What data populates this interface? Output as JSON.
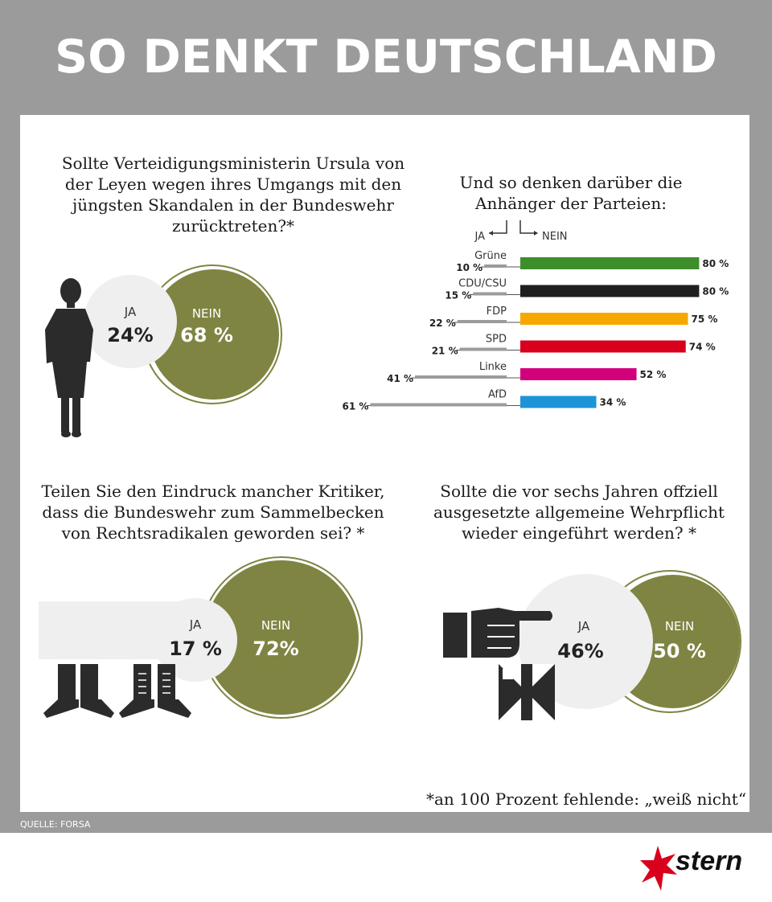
{
  "title": "SO DENKT DEUTSCHLAND",
  "source": "QUELLE: FORSA",
  "footnote": "*an 100 Prozent fehlende: „weiß nicht“",
  "brand": "stern",
  "colors": {
    "header_bg": "#9b9b9b",
    "olive": "#7f8442",
    "neutral_circle": "#efefef",
    "text": "#1a1a1a"
  },
  "icons": [
    "woman-silhouette-icon",
    "boots-icon",
    "pointing-hand-icon",
    "iron-cross-icon",
    "stern-star-logo-icon"
  ],
  "chart_data": [
    {
      "type": "pie",
      "question": "Sollte Verteidigungsministerin Ursula von der Leyen wegen ihres Umgangs mit den jüngsten Skandalen in der Bundeswehr zurücktreten?*",
      "categories": [
        "JA",
        "NEIN"
      ],
      "values": [
        24,
        68
      ],
      "labels": [
        "24%",
        "68 %"
      ]
    },
    {
      "type": "bar",
      "title": "Und so denken darüber die Anhänger der Parteien:",
      "ja_label": "JA",
      "nein_label": "NEIN",
      "categories": [
        "Grüne",
        "CDU/CSU",
        "FDP",
        "SPD",
        "Linke",
        "AfD"
      ],
      "colors": [
        "#3e8e2b",
        "#1f1f1f",
        "#f7a800",
        "#d8001c",
        "#d3007b",
        "#1d94d6"
      ],
      "series": [
        {
          "name": "JA",
          "values": [
            10,
            15,
            22,
            21,
            41,
            61
          ],
          "labels": [
            "10 %",
            "15 %",
            "22 %",
            "21 %",
            "41 %",
            "61 %"
          ]
        },
        {
          "name": "NEIN",
          "values": [
            80,
            80,
            75,
            74,
            52,
            34
          ],
          "labels": [
            "80 %",
            "80 %",
            "75 %",
            "74 %",
            "52 %",
            "34 %"
          ]
        }
      ]
    },
    {
      "type": "pie",
      "question": "Teilen Sie den Eindruck mancher Kritiker, dass die Bundeswehr zum Sammelbecken von Rechtsradikalen geworden sei? *",
      "categories": [
        "JA",
        "NEIN"
      ],
      "values": [
        17,
        72
      ],
      "labels": [
        "17 %",
        "72%"
      ]
    },
    {
      "type": "pie",
      "question": "Sollte die vor sechs Jahren offziell ausgesetzte allgemeine Wehrpflicht wieder eingeführt werden? *",
      "categories": [
        "JA",
        "NEIN"
      ],
      "values": [
        46,
        50
      ],
      "labels": [
        "46%",
        "50 %"
      ]
    }
  ]
}
